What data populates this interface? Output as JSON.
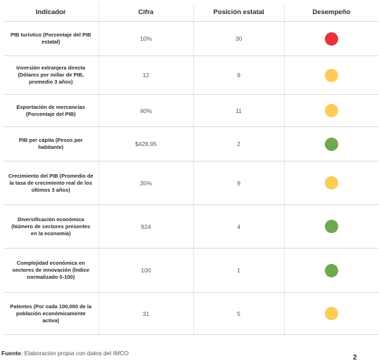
{
  "table": {
    "headers": [
      "Indicador",
      "Cifra",
      "Posición estatal",
      "Desempeño"
    ],
    "rows": [
      {
        "indicator": "PIB turístico (Porcentaje del PIB estatal)",
        "value": "10%",
        "position": "30",
        "performance": "red"
      },
      {
        "indicator": "Inversión extranjera directa (Dólares por millar de PIB, promedio 3 años)",
        "value": "12",
        "position": "9",
        "performance": "yellow"
      },
      {
        "indicator": "Exportación de mercancías (Porcentaje del PIB)",
        "value": "40%",
        "position": "11",
        "performance": "yellow"
      },
      {
        "indicator": "PIB per cápita (Pesos por habitante)",
        "value": "$428,95",
        "position": "2",
        "performance": "green"
      },
      {
        "indicator": "Crecimiento del PIB (Promedio de la tasa de crecimiento real de los últimos 3 años)",
        "value": "35%",
        "position": "9",
        "performance": "yellow"
      },
      {
        "indicator": "Diversificación económica (Número de sectores presentes en la economía)",
        "value": "924",
        "position": "4",
        "performance": "green"
      },
      {
        "indicator": "Complejidad económica en sectores de innovación (Índice normalizado 0-100)",
        "value": "100",
        "position": "1",
        "performance": "green"
      },
      {
        "indicator": "Patentes (Por cada 100,000 de la población económicamente activa)",
        "value": "31",
        "position": "5",
        "performance": "yellow"
      }
    ]
  },
  "colors": {
    "red": "#e8333c",
    "yellow": "#fdcb57",
    "green": "#6ea94f"
  },
  "footer": {
    "source_label": "Fuente",
    "source_text": ": Elaboración propia con datos del IMCO",
    "page_number": "2"
  }
}
